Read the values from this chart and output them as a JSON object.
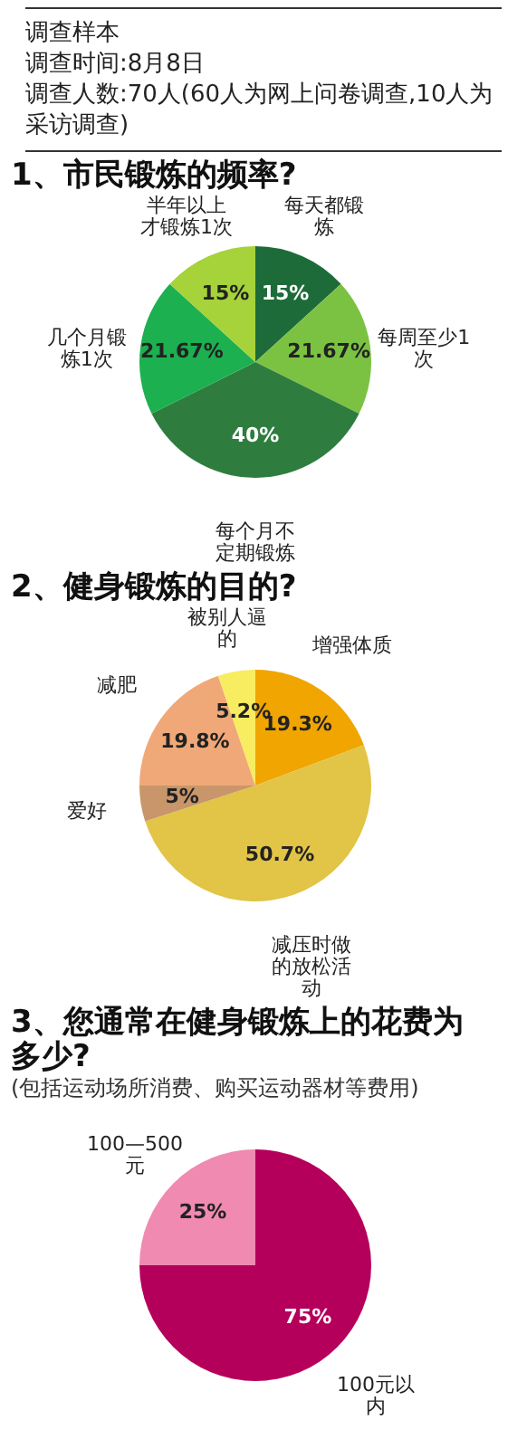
{
  "chart_data": [
    {
      "type": "other",
      "title": "调查样本",
      "annotations": [
        "调查时间:8月8日",
        "调查人数:70人(60人为网上问卷调查,10人为采访调查)"
      ]
    },
    {
      "type": "pie",
      "title": "1、市民锻炼的频率?",
      "categories": [
        "每天都锻炼",
        "每周至少1次",
        "每个月不定期锻炼",
        "几个月锻炼1次",
        "半年以上才锻炼1次"
      ],
      "values": [
        15,
        21.67,
        40,
        21.67,
        15
      ],
      "colors": [
        "#1e6b3a",
        "#7cc242",
        "#2e7d3e",
        "#1cb050",
        "#a6d23a"
      ],
      "value_labels": [
        "15%",
        "21.67%",
        "40%",
        "21.67%",
        "15%"
      ]
    },
    {
      "type": "pie",
      "title": "2、健身锻炼的目的?",
      "categories": [
        "增强体质",
        "减压时做的放松活动",
        "爱好",
        "减肥",
        "被别人逼的"
      ],
      "values": [
        19.3,
        50.7,
        5,
        19.8,
        5.2
      ],
      "colors": [
        "#f0a500",
        "#e2c446",
        "#c8966a",
        "#f0a878",
        "#f8ec60"
      ],
      "value_labels": [
        "19.3%",
        "50.7%",
        "5%",
        "19.8%",
        "5.2%"
      ]
    },
    {
      "type": "pie",
      "title": "3、您通常在健身锻炼上的花费为多少?",
      "subtitle": "(包括运动场所消费、购买运动器材等费用)",
      "categories": [
        "100元以内",
        "100—500元"
      ],
      "values": [
        75,
        25
      ],
      "colors": [
        "#b5005b",
        "#f08ab0"
      ],
      "value_labels": [
        "75%",
        "25%"
      ]
    }
  ]
}
